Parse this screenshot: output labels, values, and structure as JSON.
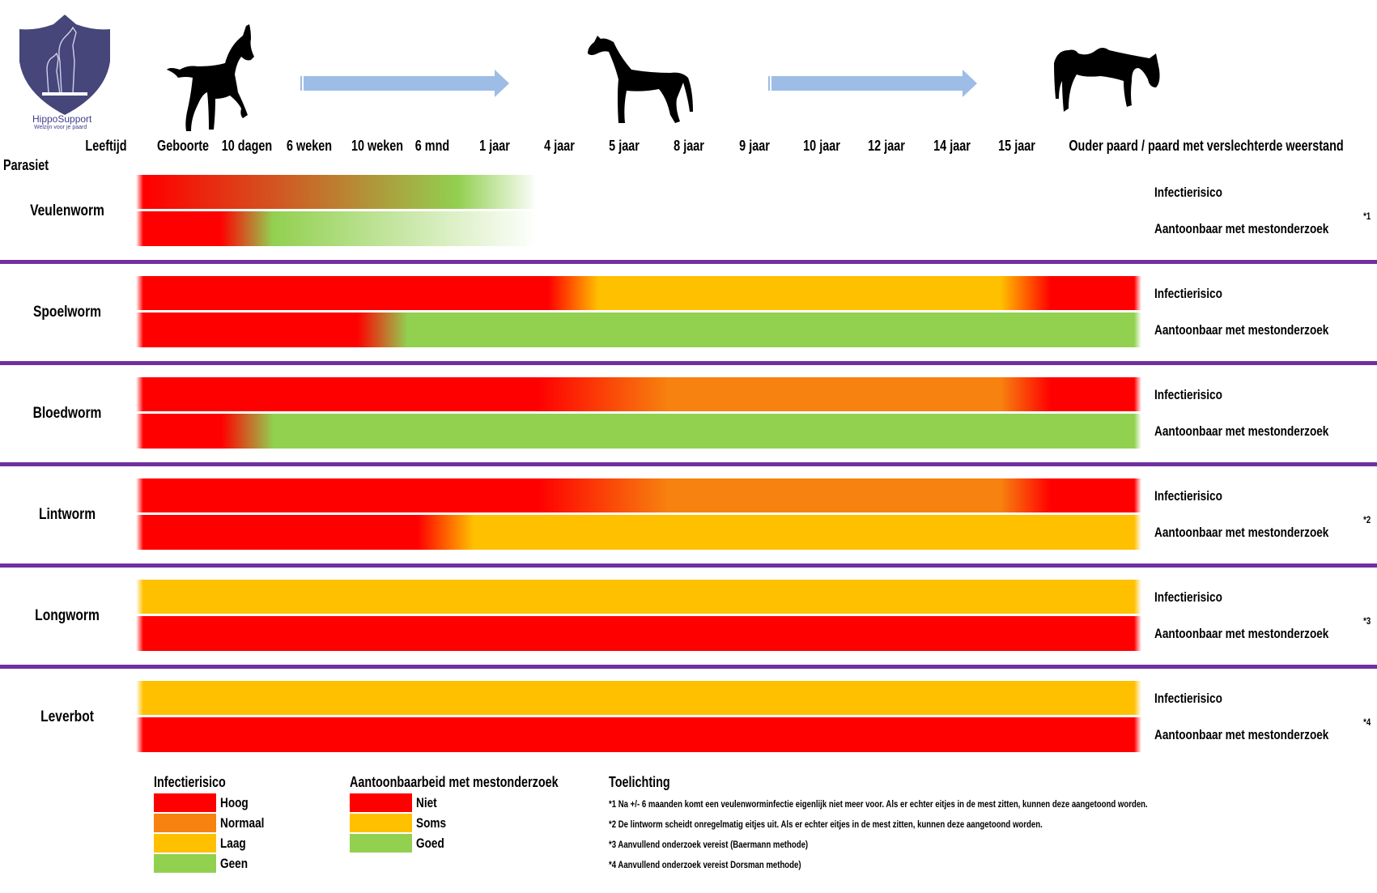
{
  "logo": {
    "brand": "HippoSupport",
    "tagline": "Welzijn voor je paard",
    "color": "#46467a"
  },
  "illustrations": [
    "foal-silhouette",
    "arrow",
    "young-horse-silhouette",
    "arrow",
    "old-horse-silhouette"
  ],
  "header": {
    "age_label": "Leeftijd",
    "parasite_label": "Parasiet",
    "ages": [
      "Geboorte",
      "10 dagen",
      "6 weken",
      "10 weken",
      "6 mnd",
      "1 jaar",
      "4 jaar",
      "5 jaar",
      "8 jaar",
      "9 jaar",
      "10 jaar",
      "12 jaar",
      "14 jaar",
      "15 jaar",
      "Ouder paard / paard met verslechterde weerstand"
    ]
  },
  "row_labels": {
    "infection": "Infectierisico",
    "detection": "Aantoonbaar met mestonderzoek"
  },
  "parasites": [
    {
      "name": "Veulenworm",
      "note": "*1",
      "infection": [
        "Hoog",
        "Geen"
      ],
      "detection": [
        "Niet",
        "Goed"
      ]
    },
    {
      "name": "Spoelworm",
      "note": "",
      "infection": [
        "Hoog",
        "Laag",
        "Hoog"
      ],
      "detection": [
        "Niet",
        "Goed"
      ]
    },
    {
      "name": "Bloedworm",
      "note": "",
      "infection": [
        "Hoog",
        "Normaal",
        "Hoog"
      ],
      "detection": [
        "Niet",
        "Goed"
      ]
    },
    {
      "name": "Lintworm",
      "note": "*2",
      "infection": [
        "Hoog",
        "Normaal",
        "Hoog"
      ],
      "detection": [
        "Niet",
        "Soms"
      ]
    },
    {
      "name": "Longworm",
      "note": "*3",
      "infection": [
        "Laag"
      ],
      "detection": [
        "Niet"
      ]
    },
    {
      "name": "Leverbot",
      "note": "*4",
      "infection": [
        "Laag"
      ],
      "detection": [
        "Niet"
      ]
    }
  ],
  "legend": {
    "infection": {
      "title": "Infectierisico",
      "items": [
        {
          "label": "Hoog",
          "color": "#ff0000"
        },
        {
          "label": "Normaal",
          "color": "#f7820f"
        },
        {
          "label": "Laag",
          "color": "#ffc000"
        },
        {
          "label": "Geen",
          "color": "#92d050"
        }
      ]
    },
    "detection": {
      "title": "Aantoonbaarbeid met mestonderzoek",
      "items": [
        {
          "label": "Niet",
          "color": "#ff0000"
        },
        {
          "label": "Soms",
          "color": "#ffc000"
        },
        {
          "label": "Goed",
          "color": "#92d050"
        }
      ]
    },
    "notes": {
      "title": "Toelichting",
      "items": [
        "*1 Na +/- 6 maanden komt een veulenworminfectie eigenlijk niet meer voor. Als er echter eitjes in de mest zitten, kunnen deze aangetoond worden.",
        "*2 De lintworm scheidt onregelmatig eitjes uit. Als er echter eitjes in de mest zitten, kunnen deze aangetoond worden.",
        "*3 Aanvullend onderzoek vereist (Baermann methode)",
        "*4 Aanvullend onderzoek vereist Dorsman methode)"
      ]
    }
  },
  "colors": {
    "separator": "#7030a0",
    "arrow": "#9dbde6"
  }
}
